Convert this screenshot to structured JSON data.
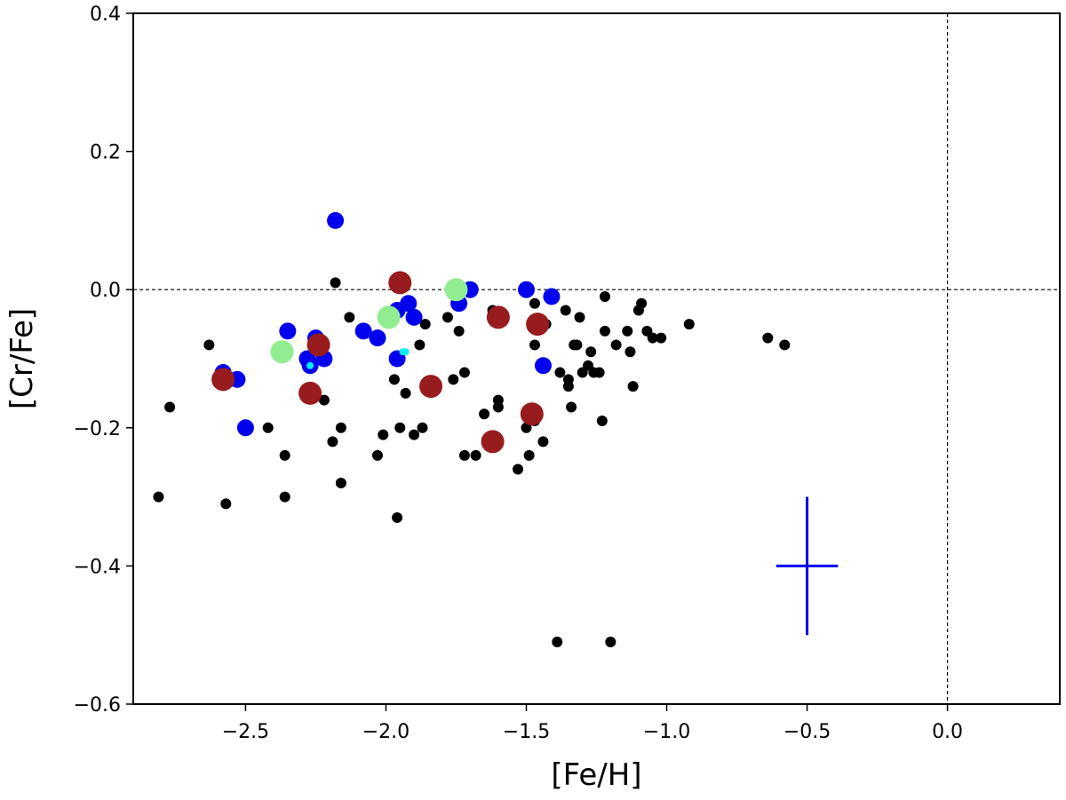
{
  "chart_data": {
    "type": "scatter",
    "title": "",
    "xlabel": "[Fe/H]",
    "ylabel": "[Cr/Fe]",
    "xlim": [
      -2.9,
      0.4
    ],
    "ylim": [
      -0.6,
      0.4
    ],
    "xticks": [
      -2.5,
      -2.0,
      -1.5,
      -1.0,
      -0.5,
      0.0
    ],
    "xtick_labels": [
      "−2.5",
      "−2.0",
      "−1.5",
      "−1.0",
      "−0.5",
      "0.0"
    ],
    "yticks": [
      -0.6,
      -0.4,
      -0.2,
      0.0,
      0.2,
      0.4
    ],
    "ytick_labels": [
      "−0.6",
      "−0.4",
      "−0.2",
      "0.0",
      "0.2",
      "0.4"
    ],
    "reference_lines": {
      "horizontal_y": 0.0,
      "vertical_x": 0.0,
      "style": "dashed"
    },
    "error_bar": {
      "x": -0.5,
      "y": -0.4,
      "x_err": 0.11,
      "y_err": 0.1,
      "color": "#0000ee"
    },
    "series": [
      {
        "name": "black",
        "color": "#000000",
        "size": "small",
        "points": [
          [
            -2.81,
            -0.3
          ],
          [
            -2.77,
            -0.17
          ],
          [
            -2.63,
            -0.08
          ],
          [
            -2.57,
            -0.31
          ],
          [
            -2.42,
            -0.2
          ],
          [
            -2.36,
            -0.24
          ],
          [
            -2.36,
            -0.3
          ],
          [
            -2.18,
            0.01
          ],
          [
            -2.19,
            -0.22
          ],
          [
            -2.16,
            -0.2
          ],
          [
            -2.16,
            -0.28
          ],
          [
            -2.13,
            -0.04
          ],
          [
            -2.22,
            -0.16
          ],
          [
            -2.03,
            -0.24
          ],
          [
            -2.01,
            -0.21
          ],
          [
            -1.96,
            -0.33
          ],
          [
            -1.97,
            -0.13
          ],
          [
            -1.95,
            -0.2
          ],
          [
            -1.93,
            -0.15
          ],
          [
            -1.9,
            -0.21
          ],
          [
            -1.86,
            -0.05
          ],
          [
            -1.87,
            -0.2
          ],
          [
            -1.88,
            -0.08
          ],
          [
            -1.78,
            -0.04
          ],
          [
            -1.76,
            -0.13
          ],
          [
            -1.74,
            -0.06
          ],
          [
            -1.72,
            -0.12
          ],
          [
            -1.72,
            -0.24
          ],
          [
            -1.68,
            -0.24
          ],
          [
            -1.65,
            -0.18
          ],
          [
            -1.62,
            -0.03
          ],
          [
            -1.6,
            -0.16
          ],
          [
            -1.6,
            -0.17
          ],
          [
            -1.53,
            -0.26
          ],
          [
            -1.5,
            -0.2
          ],
          [
            -1.49,
            -0.24
          ],
          [
            -1.47,
            -0.02
          ],
          [
            -1.47,
            -0.08
          ],
          [
            -1.47,
            -0.19
          ],
          [
            -1.44,
            -0.22
          ],
          [
            -1.43,
            -0.05
          ],
          [
            -1.39,
            -0.51
          ],
          [
            -1.38,
            -0.12
          ],
          [
            -1.36,
            -0.03
          ],
          [
            -1.35,
            -0.13
          ],
          [
            -1.35,
            -0.14
          ],
          [
            -1.34,
            -0.17
          ],
          [
            -1.33,
            -0.08
          ],
          [
            -1.32,
            -0.08
          ],
          [
            -1.31,
            -0.04
          ],
          [
            -1.3,
            -0.12
          ],
          [
            -1.28,
            -0.11
          ],
          [
            -1.27,
            -0.09
          ],
          [
            -1.26,
            -0.12
          ],
          [
            -1.24,
            -0.12
          ],
          [
            -1.23,
            -0.19
          ],
          [
            -1.22,
            -0.06
          ],
          [
            -1.22,
            -0.01
          ],
          [
            -1.2,
            -0.51
          ],
          [
            -1.18,
            -0.08
          ],
          [
            -1.14,
            -0.06
          ],
          [
            -1.13,
            -0.09
          ],
          [
            -1.12,
            -0.14
          ],
          [
            -1.1,
            -0.03
          ],
          [
            -1.09,
            -0.02
          ],
          [
            -1.07,
            -0.06
          ],
          [
            -1.05,
            -0.07
          ],
          [
            -1.02,
            -0.07
          ],
          [
            -0.92,
            -0.05
          ],
          [
            -0.64,
            -0.07
          ],
          [
            -0.58,
            -0.08
          ]
        ]
      },
      {
        "name": "blue",
        "color": "#0000ee",
        "size": "medium",
        "points": [
          [
            -2.58,
            -0.12
          ],
          [
            -2.53,
            -0.13
          ],
          [
            -2.5,
            -0.2
          ],
          [
            -2.35,
            -0.06
          ],
          [
            -2.28,
            -0.1
          ],
          [
            -2.27,
            -0.11
          ],
          [
            -2.25,
            -0.07
          ],
          [
            -2.22,
            -0.1
          ],
          [
            -2.18,
            0.1
          ],
          [
            -2.08,
            -0.06
          ],
          [
            -2.03,
            -0.07
          ],
          [
            -1.96,
            -0.03
          ],
          [
            -1.96,
            -0.1
          ],
          [
            -1.92,
            -0.02
          ],
          [
            -1.9,
            -0.04
          ],
          [
            -1.74,
            -0.02
          ],
          [
            -1.7,
            0.0
          ],
          [
            -1.5,
            0.0
          ],
          [
            -1.41,
            -0.01
          ],
          [
            -1.44,
            -0.11
          ]
        ]
      },
      {
        "name": "dark-red",
        "color": "#981b1e",
        "size": "large",
        "points": [
          [
            -2.58,
            -0.13
          ],
          [
            -2.27,
            -0.15
          ],
          [
            -2.24,
            -0.08
          ],
          [
            -1.95,
            0.01
          ],
          [
            -1.84,
            -0.14
          ],
          [
            -1.62,
            -0.22
          ],
          [
            -1.6,
            -0.04
          ],
          [
            -1.48,
            -0.18
          ],
          [
            -1.46,
            -0.05
          ]
        ]
      },
      {
        "name": "light-green",
        "color": "#90ee90",
        "size": "large",
        "points": [
          [
            -2.37,
            -0.09
          ],
          [
            -1.99,
            -0.04
          ],
          [
            -1.75,
            0.0
          ]
        ]
      },
      {
        "name": "cyan-markers",
        "color": "#00eeee",
        "size": "tiny",
        "points": [
          [
            -2.27,
            -0.11
          ],
          [
            -1.93,
            -0.09
          ],
          [
            -1.94,
            -0.09
          ]
        ]
      }
    ]
  }
}
